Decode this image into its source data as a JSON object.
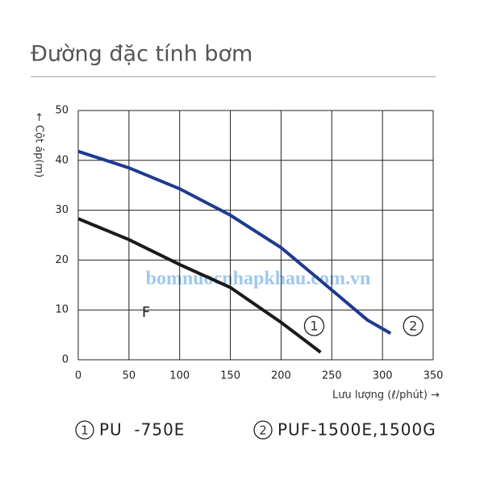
{
  "chart_data": {
    "type": "line",
    "title": "Đường đặc tính bơm",
    "x_label": "Lưu lượng (ℓ/phút) →",
    "y_label": "← Cột áp(m)",
    "annotations": [
      "F",
      "bomnuocnhapkhau.com.vn"
    ],
    "xlim": [
      0,
      350
    ],
    "xticks": [
      0,
      50,
      100,
      150,
      200,
      250,
      300,
      350
    ],
    "ylim": [
      0,
      50
    ],
    "yticks": [
      0,
      10,
      20,
      30,
      40,
      50
    ],
    "grid": true,
    "series": [
      {
        "name": "PU  -750E",
        "label": "1",
        "color": "#1a1a1a",
        "x": [
          0,
          50,
          100,
          150,
          200,
          239
        ],
        "values": [
          28.3,
          24.1,
          19.1,
          14.5,
          7.5,
          1.5
        ]
      },
      {
        "name": "PUF-1500E,1500G",
        "label": "2",
        "color": "#1f3a8f",
        "x": [
          0,
          50,
          100,
          150,
          200,
          250,
          285,
          308
        ],
        "values": [
          41.8,
          38.5,
          34.3,
          29,
          22.5,
          14,
          8,
          5.3
        ]
      }
    ]
  }
}
